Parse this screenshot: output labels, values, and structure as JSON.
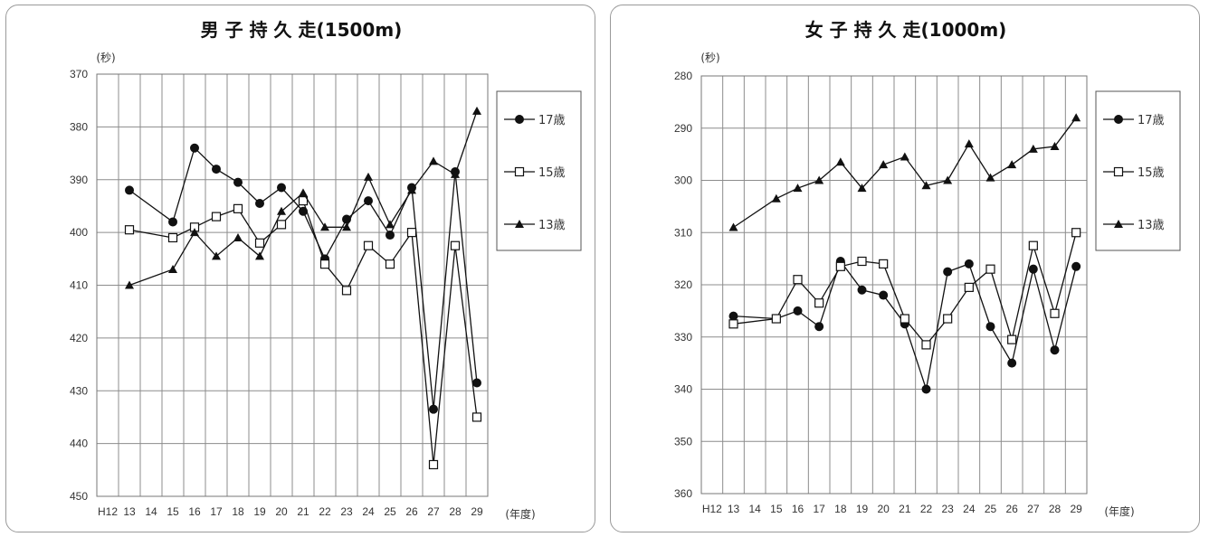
{
  "chart_data": [
    {
      "type": "line",
      "title": "男 子 持 久 走(1500m)",
      "ylabel": "(秒)",
      "xlabel": "(年度)",
      "ylim": [
        450,
        370
      ],
      "y_inverted": true,
      "yticks": [
        370,
        380,
        390,
        400,
        410,
        420,
        430,
        440,
        450
      ],
      "x": [
        "H12",
        "13",
        "14",
        "15",
        "16",
        "17",
        "18",
        "19",
        "20",
        "21",
        "22",
        "23",
        "24",
        "25",
        "26",
        "27",
        "28",
        "29"
      ],
      "legend_position": "right",
      "grid": true,
      "series": [
        {
          "name": "17歳",
          "marker": "filled-circle",
          "values": [
            null,
            392,
            null,
            398,
            384,
            388,
            390.5,
            394.5,
            391.5,
            396,
            405,
            397.5,
            394,
            400.5,
            391.5,
            433.5,
            388.5,
            428.5
          ]
        },
        {
          "name": "15歳",
          "marker": "open-square",
          "values": [
            null,
            399.5,
            null,
            401,
            399,
            397,
            395.5,
            402,
            398.5,
            394,
            406,
            411,
            402.5,
            406,
            400,
            444,
            402.5,
            435
          ]
        },
        {
          "name": "13歳",
          "marker": "filled-triangle",
          "values": [
            null,
            410,
            null,
            407,
            400,
            404.5,
            401,
            404.5,
            396,
            392.5,
            399,
            399,
            389.5,
            398.5,
            392,
            386.5,
            389,
            377
          ]
        }
      ]
    },
    {
      "type": "line",
      "title": "女 子 持 久 走(1000m)",
      "ylabel": "(秒)",
      "xlabel": "(年度)",
      "ylim": [
        360,
        280
      ],
      "y_inverted": true,
      "yticks": [
        280,
        290,
        300,
        310,
        320,
        330,
        340,
        350,
        360
      ],
      "x": [
        "H12",
        "13",
        "14",
        "15",
        "16",
        "17",
        "18",
        "19",
        "20",
        "21",
        "22",
        "23",
        "24",
        "25",
        "26",
        "27",
        "28",
        "29"
      ],
      "legend_position": "right",
      "grid": true,
      "series": [
        {
          "name": "17歳",
          "marker": "filled-circle",
          "values": [
            null,
            326,
            null,
            326.5,
            325,
            328,
            315.5,
            321,
            322,
            327.5,
            340,
            317.5,
            316,
            328,
            335,
            317,
            332.5,
            316.5
          ]
        },
        {
          "name": "15歳",
          "marker": "open-square",
          "values": [
            null,
            327.5,
            null,
            326.5,
            319,
            323.5,
            316.5,
            315.5,
            316,
            326.5,
            331.5,
            326.5,
            320.5,
            317,
            330.5,
            312.5,
            325.5,
            310
          ]
        },
        {
          "name": "13歳",
          "marker": "filled-triangle",
          "values": [
            null,
            309,
            null,
            303.5,
            301.5,
            300,
            296.5,
            301.5,
            297,
            295.5,
            301,
            300,
            293,
            299.5,
            297,
            294,
            293.5,
            288
          ]
        }
      ]
    }
  ]
}
